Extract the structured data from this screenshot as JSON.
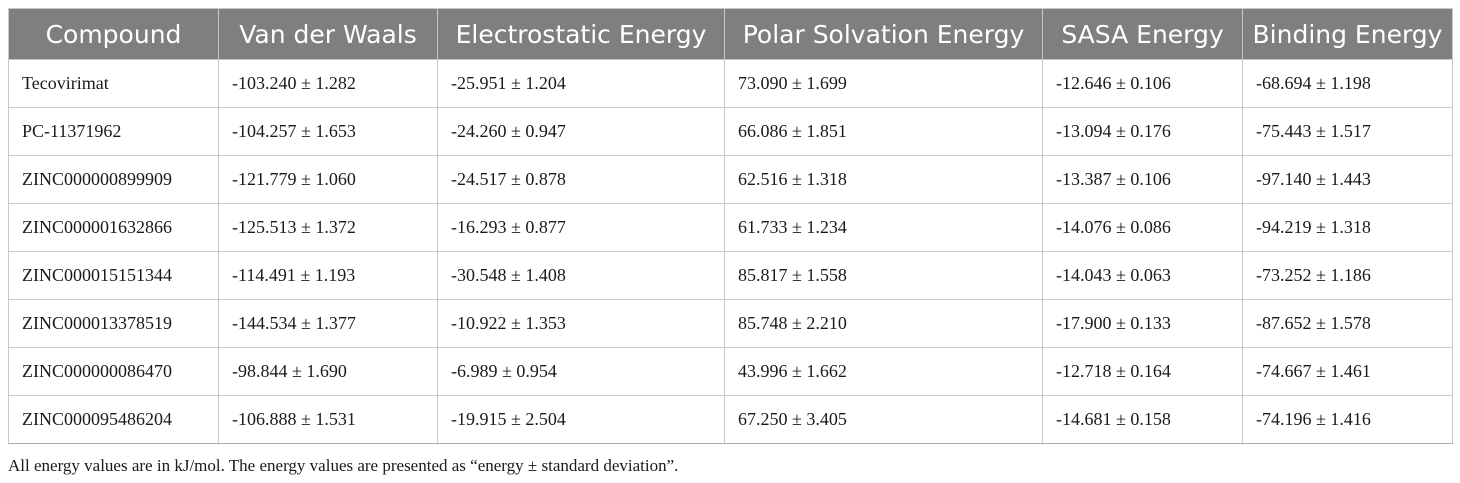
{
  "table": {
    "headers": [
      "Compound",
      "Van der Waals",
      "Electrostatic Energy",
      "Polar Solvation Energy",
      "SASA Energy",
      "Binding Energy"
    ],
    "rows": [
      [
        "Tecovirimat",
        "-103.240 ± 1.282",
        "-25.951 ± 1.204",
        "73.090 ± 1.699",
        "-12.646 ± 0.106",
        "-68.694 ± 1.198"
      ],
      [
        "PC-11371962",
        "-104.257 ± 1.653",
        "-24.260 ± 0.947",
        "66.086 ± 1.851",
        "-13.094 ± 0.176",
        "-75.443 ± 1.517"
      ],
      [
        "ZINC000000899909",
        "-121.779 ± 1.060",
        "-24.517 ± 0.878",
        "62.516 ± 1.318",
        "-13.387 ± 0.106",
        "-97.140 ± 1.443"
      ],
      [
        "ZINC000001632866",
        "-125.513 ± 1.372",
        "-16.293 ± 0.877",
        "61.733 ± 1.234",
        "-14.076 ± 0.086",
        "-94.219 ± 1.318"
      ],
      [
        "ZINC000015151344",
        "-114.491 ± 1.193",
        "-30.548 ± 1.408",
        "85.817 ± 1.558",
        "-14.043 ± 0.063",
        "-73.252 ± 1.186"
      ],
      [
        "ZINC000013378519",
        "-144.534 ± 1.377",
        "-10.922 ± 1.353",
        "85.748 ± 2.210",
        "-17.900 ± 0.133",
        "-87.652 ± 1.578"
      ],
      [
        "ZINC000000086470",
        "-98.844 ± 1.690",
        "-6.989 ± 0.954",
        "43.996 ± 1.662",
        "-12.718 ± 0.164",
        "-74.667 ± 1.461"
      ],
      [
        "ZINC000095486204",
        "-106.888 ± 1.531",
        "-19.915 ± 2.504",
        "67.250 ± 3.405",
        "-14.681 ± 0.158",
        "-74.196 ± 1.416"
      ]
    ]
  },
  "footnote": "All energy values are in kJ/mol. The energy values are presented as “energy ± standard deviation”.",
  "colors": {
    "header_bg": "#7f7f7f",
    "header_text": "#ffffff",
    "grid": "#c8c8c8"
  }
}
